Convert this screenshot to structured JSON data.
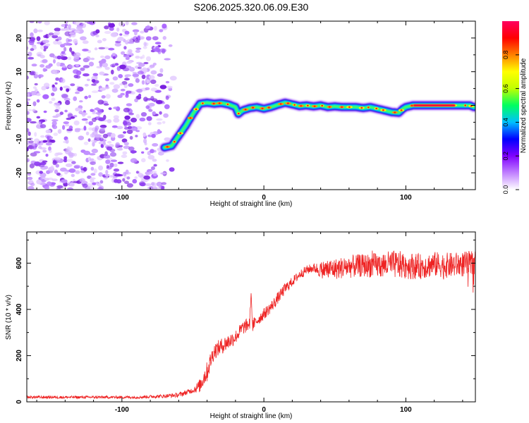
{
  "figure": {
    "title": "S206.2025.320.06.09.E30"
  },
  "chart_data": [
    {
      "type": "heatmap",
      "xlabel": "Height of straight line (km)",
      "ylabel": "Frequency (Hz)",
      "xlim": [
        -167,
        149
      ],
      "ylim": [
        -25,
        25
      ],
      "xticks": [
        -100,
        0,
        100
      ],
      "yticks": [
        -20,
        -10,
        0,
        10,
        20
      ],
      "grid": false,
      "noise_region": {
        "x": [
          -167,
          -62
        ],
        "y": [
          -25,
          25
        ]
      },
      "track_x": [
        -70,
        -65,
        -60,
        -55,
        -50,
        -45,
        -40,
        -35,
        -30,
        -25,
        -20,
        -18,
        -15,
        -10,
        -5,
        0,
        5,
        10,
        15,
        20,
        25,
        30,
        35,
        40,
        45,
        50,
        55,
        60,
        65,
        70,
        75,
        80,
        85,
        90,
        95,
        98,
        100,
        105,
        110,
        115,
        120,
        125,
        130,
        135,
        140,
        145,
        148
      ],
      "track_y": [
        -12.5,
        -12,
        -9,
        -6,
        -2.5,
        0.5,
        0.8,
        0.5,
        0.7,
        0.3,
        -0.5,
        -2.5,
        -1.5,
        -0.8,
        -0.5,
        -1,
        -0.5,
        0.2,
        0.8,
        0.3,
        -0.2,
        0,
        -0.3,
        0,
        -0.5,
        -0.3,
        -0.5,
        -0.5,
        -0.5,
        -0.8,
        -0.5,
        -1,
        -1.5,
        -2,
        -2.2,
        -1,
        -0.5,
        0,
        0,
        0,
        0,
        0,
        0,
        0,
        0,
        0,
        -0.5
      ],
      "colorbar": {
        "label": "Normalized spectral amplitude",
        "range": [
          0,
          1
        ],
        "ticks": [
          "0.0",
          "0.2",
          "0.4",
          "0.6",
          "0.8"
        ],
        "colors": [
          "#ffffff",
          "#c080ff",
          "#8000ff",
          "#0000ff",
          "#00c0ff",
          "#00ff60",
          "#c0ff00",
          "#ffff00",
          "#ff8000",
          "#ff0000",
          "#ff0060"
        ]
      }
    },
    {
      "type": "line",
      "xlabel": "Height of straight line (km)",
      "ylabel": "SNR (10 * v/v)",
      "xlim": [
        -167,
        149
      ],
      "ylim": [
        0,
        735
      ],
      "xticks": [
        -100,
        0,
        100
      ],
      "yticks": [
        0,
        200,
        400,
        600
      ],
      "grid": false,
      "color": "#ee2222",
      "series": [
        {
          "name": "SNR",
          "x": [
            -167,
            -150,
            -130,
            -110,
            -90,
            -70,
            -60,
            -50,
            -45,
            -42,
            -40,
            -38,
            -35,
            -30,
            -25,
            -20,
            -15,
            -12,
            -10,
            -9,
            -8,
            -5,
            0,
            5,
            10,
            15,
            20,
            25,
            30,
            35,
            40,
            45,
            50,
            60,
            70,
            80,
            90,
            100,
            110,
            120,
            130,
            140,
            149
          ],
          "y": [
            20,
            20,
            20,
            20,
            20,
            25,
            30,
            50,
            70,
            110,
            130,
            170,
            220,
            240,
            260,
            280,
            320,
            330,
            340,
            470,
            330,
            350,
            380,
            410,
            450,
            490,
            520,
            550,
            570,
            580,
            570,
            575,
            575,
            585,
            590,
            590,
            595,
            590,
            585,
            595,
            590,
            595,
            595
          ],
          "noise": [
            6,
            6,
            6,
            6,
            6,
            8,
            10,
            12,
            30,
            40,
            45,
            40,
            35,
            35,
            35,
            30,
            30,
            30,
            30,
            0,
            30,
            25,
            25,
            25,
            25,
            25,
            20,
            20,
            20,
            20,
            35,
            45,
            45,
            50,
            50,
            55,
            60,
            60,
            55,
            55,
            55,
            55,
            60
          ]
        }
      ]
    }
  ]
}
